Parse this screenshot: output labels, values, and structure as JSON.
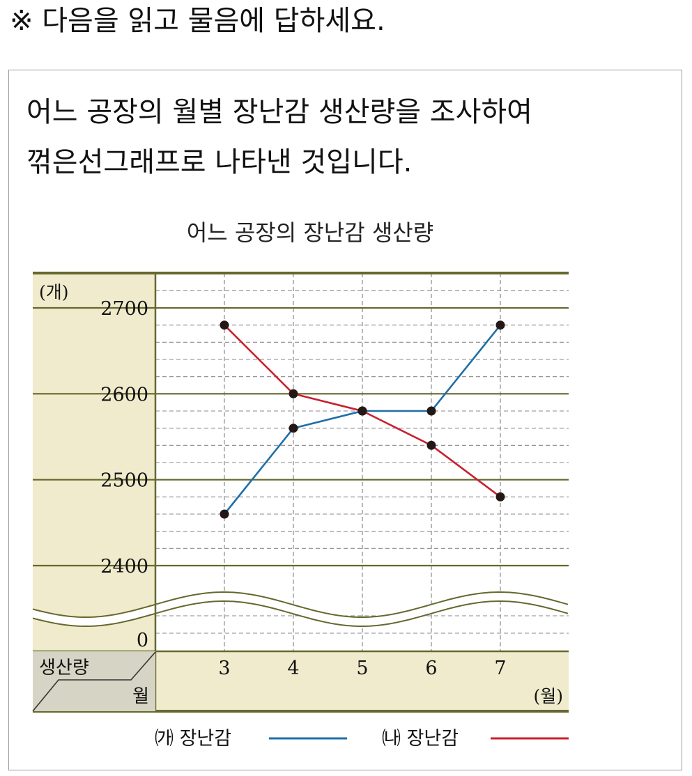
{
  "instruction": "※ 다음을 읽고 물음에 답하세요.",
  "description": {
    "line1": "어느 공장의 월별 장난감 생산량을 조사하여",
    "line2": "꺾은선그래프로 나타낸 것입니다."
  },
  "colors": {
    "panel": "#efebcc",
    "panel_dark": "#d6d4c4",
    "axis": "#66682e",
    "series_ga": "#1f6fa8",
    "series_na": "#c8202e"
  },
  "chart_data": {
    "type": "line",
    "title": "어느 공장의 장난감 생산량",
    "x": [
      3,
      4,
      5,
      6,
      7
    ],
    "x_tick_labels": [
      "3",
      "4",
      "5",
      "6",
      "7"
    ],
    "xlabel": "월",
    "x_unit": "(월)",
    "ylabel": "생산량",
    "y_unit": "(개)",
    "y_tick_labels": [
      "2700",
      "2600",
      "2500",
      "2400",
      "0"
    ],
    "y_axis_break": true,
    "ylim": [
      2400,
      2700
    ],
    "y_minor_step": 20,
    "grid": true,
    "legend_position": "bottom",
    "series": [
      {
        "name": "㈎ 장난감",
        "values": [
          2460,
          2560,
          2580,
          2580,
          2680
        ]
      },
      {
        "name": "㈏ 장난감",
        "values": [
          2680,
          2600,
          2580,
          2540,
          2480
        ]
      }
    ]
  }
}
